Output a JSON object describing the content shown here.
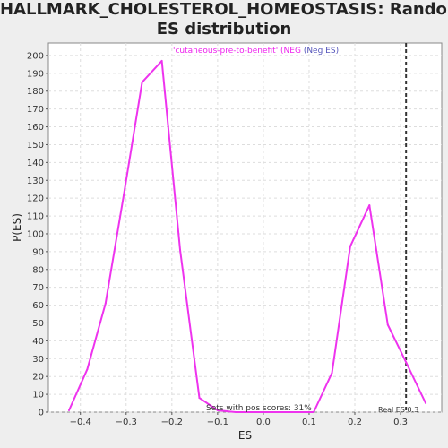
{
  "title_line1": "HALLMARK_CHOLESTEROL_HOMEOSTASIS: Random",
  "title_line2": "ES distribution",
  "legend_line1": "'cutaneous-pre-to-benefit' (NEG",
  "legend_line2": "(Neg ES)",
  "footer_left": "Sets with pos scores: 31%",
  "footer_right": "Real ES 0.3",
  "colors": {
    "series": "#ee33ee",
    "real_es_line": "#333333",
    "background": "#eeeeee",
    "plot_bg": "#ffffff",
    "grid": "#dddddd"
  },
  "chart_data": {
    "type": "line",
    "xlabel": "ES",
    "ylabel": "P(ES)",
    "xlim": [
      -0.47,
      0.39
    ],
    "ylim": [
      0,
      207
    ],
    "xticks": [
      -0.4,
      -0.3,
      -0.2,
      -0.1,
      0.0,
      0.1,
      0.2,
      0.3
    ],
    "xtick_labels": [
      "−0.4",
      "−0.3",
      "−0.2",
      "−0.1",
      "0.0",
      "0.1",
      "0.2",
      "0.3"
    ],
    "yticks": [
      0,
      10,
      20,
      30,
      40,
      50,
      60,
      70,
      80,
      90,
      100,
      110,
      120,
      130,
      140,
      150,
      160,
      170,
      180,
      190,
      200
    ],
    "grid": true,
    "series": [
      {
        "x": [
          -0.425,
          -0.385,
          -0.345,
          -0.305,
          -0.265,
          -0.222,
          -0.182,
          -0.14,
          -0.1,
          -0.06,
          -0.02,
          0.02,
          0.06,
          0.1,
          0.11,
          0.15,
          0.19,
          0.232,
          0.272,
          0.312,
          0.355
        ],
        "y": [
          1,
          24,
          61,
          122,
          185,
          197,
          91,
          8,
          1,
          0,
          0,
          0,
          0,
          0,
          0,
          22,
          93,
          116,
          49,
          28,
          5
        ]
      }
    ],
    "real_es": 0.312
  }
}
